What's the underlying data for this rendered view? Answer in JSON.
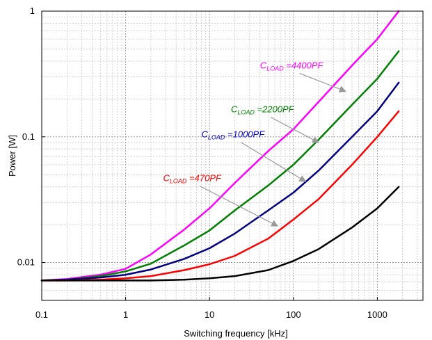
{
  "chart_data": {
    "type": "line",
    "title": "",
    "xlabel": "Switching frequency [kHz]",
    "ylabel": "Power [W]",
    "x_scale": "log",
    "y_scale": "log",
    "xlim": [
      0.1,
      3500
    ],
    "ylim": [
      0.005,
      1
    ],
    "grid": true,
    "x_ticks": [
      {
        "value": 0.1,
        "label": "0.1"
      },
      {
        "value": 1,
        "label": "1"
      },
      {
        "value": 10,
        "label": "10"
      },
      {
        "value": 100,
        "label": "100"
      },
      {
        "value": 1000,
        "label": "1000"
      }
    ],
    "y_ticks": [
      {
        "value": 0.01,
        "label": "0.01"
      },
      {
        "value": 0.1,
        "label": "0.1"
      },
      {
        "value": 1,
        "label": "1"
      }
    ],
    "series": [
      {
        "color": "#ff00ff",
        "x": [
          0.1,
          0.2,
          0.5,
          1,
          2,
          5,
          10,
          20,
          50,
          100,
          200,
          500,
          1000,
          1800
        ],
        "y": [
          0.0072,
          0.0074,
          0.008,
          0.0089,
          0.0116,
          0.0183,
          0.027,
          0.043,
          0.077,
          0.115,
          0.19,
          0.37,
          0.6,
          1.0
        ]
      },
      {
        "color": "#008000",
        "x": [
          0.1,
          0.2,
          0.5,
          1,
          2,
          5,
          10,
          20,
          50,
          100,
          200,
          500,
          1000,
          1800
        ],
        "y": [
          0.0072,
          0.0073,
          0.0078,
          0.0085,
          0.0098,
          0.0137,
          0.018,
          0.026,
          0.041,
          0.06,
          0.095,
          0.18,
          0.29,
          0.48
        ]
      },
      {
        "color": "#000080",
        "x": [
          0.1,
          0.2,
          0.5,
          1,
          2,
          5,
          10,
          20,
          50,
          100,
          200,
          500,
          1000,
          1800
        ],
        "y": [
          0.0072,
          0.0073,
          0.0076,
          0.008,
          0.0088,
          0.0107,
          0.013,
          0.017,
          0.026,
          0.036,
          0.054,
          0.1,
          0.16,
          0.27
        ]
      },
      {
        "color": "#ff0000",
        "x": [
          0.1,
          0.2,
          0.5,
          1,
          2,
          5,
          10,
          20,
          50,
          100,
          200,
          500,
          1000,
          1800
        ],
        "y": [
          0.0072,
          0.0072,
          0.0073,
          0.0075,
          0.0078,
          0.0087,
          0.0097,
          0.0113,
          0.0155,
          0.022,
          0.032,
          0.06,
          0.1,
          0.16
        ]
      },
      {
        "color": "#000000",
        "x": [
          0.1,
          0.2,
          0.5,
          1,
          2,
          5,
          10,
          20,
          50,
          100,
          200,
          500,
          1000,
          1800
        ],
        "y": [
          0.0072,
          0.0072,
          0.0072,
          0.0072,
          0.0072,
          0.0073,
          0.0075,
          0.0078,
          0.0087,
          0.0103,
          0.0128,
          0.019,
          0.027,
          0.04
        ]
      }
    ],
    "annotations": [
      {
        "text_main": "C",
        "text_sub": "LOAD",
        "text_rest": " =4400PF",
        "color": "#ff00ff",
        "x": 40,
        "y": 0.35,
        "arrow_to": [
          420,
          0.23
        ]
      },
      {
        "text_main": "C",
        "text_sub": "LOAD",
        "text_rest": " =2200PF",
        "color": "#008000",
        "x": 18,
        "y": 0.157,
        "arrow_to": [
          200,
          0.09
        ]
      },
      {
        "text_main": "C",
        "text_sub": "LOAD",
        "text_rest": " =1000PF",
        "color": "#0000cc",
        "x": 8,
        "y": 0.099,
        "arrow_to": [
          140,
          0.044
        ]
      },
      {
        "text_main": "C",
        "text_sub": "LOAD",
        "text_rest": " =470PF",
        "color": "#ff0000",
        "x": 2.8,
        "y": 0.0445,
        "arrow_to": [
          65,
          0.0195
        ]
      }
    ]
  }
}
